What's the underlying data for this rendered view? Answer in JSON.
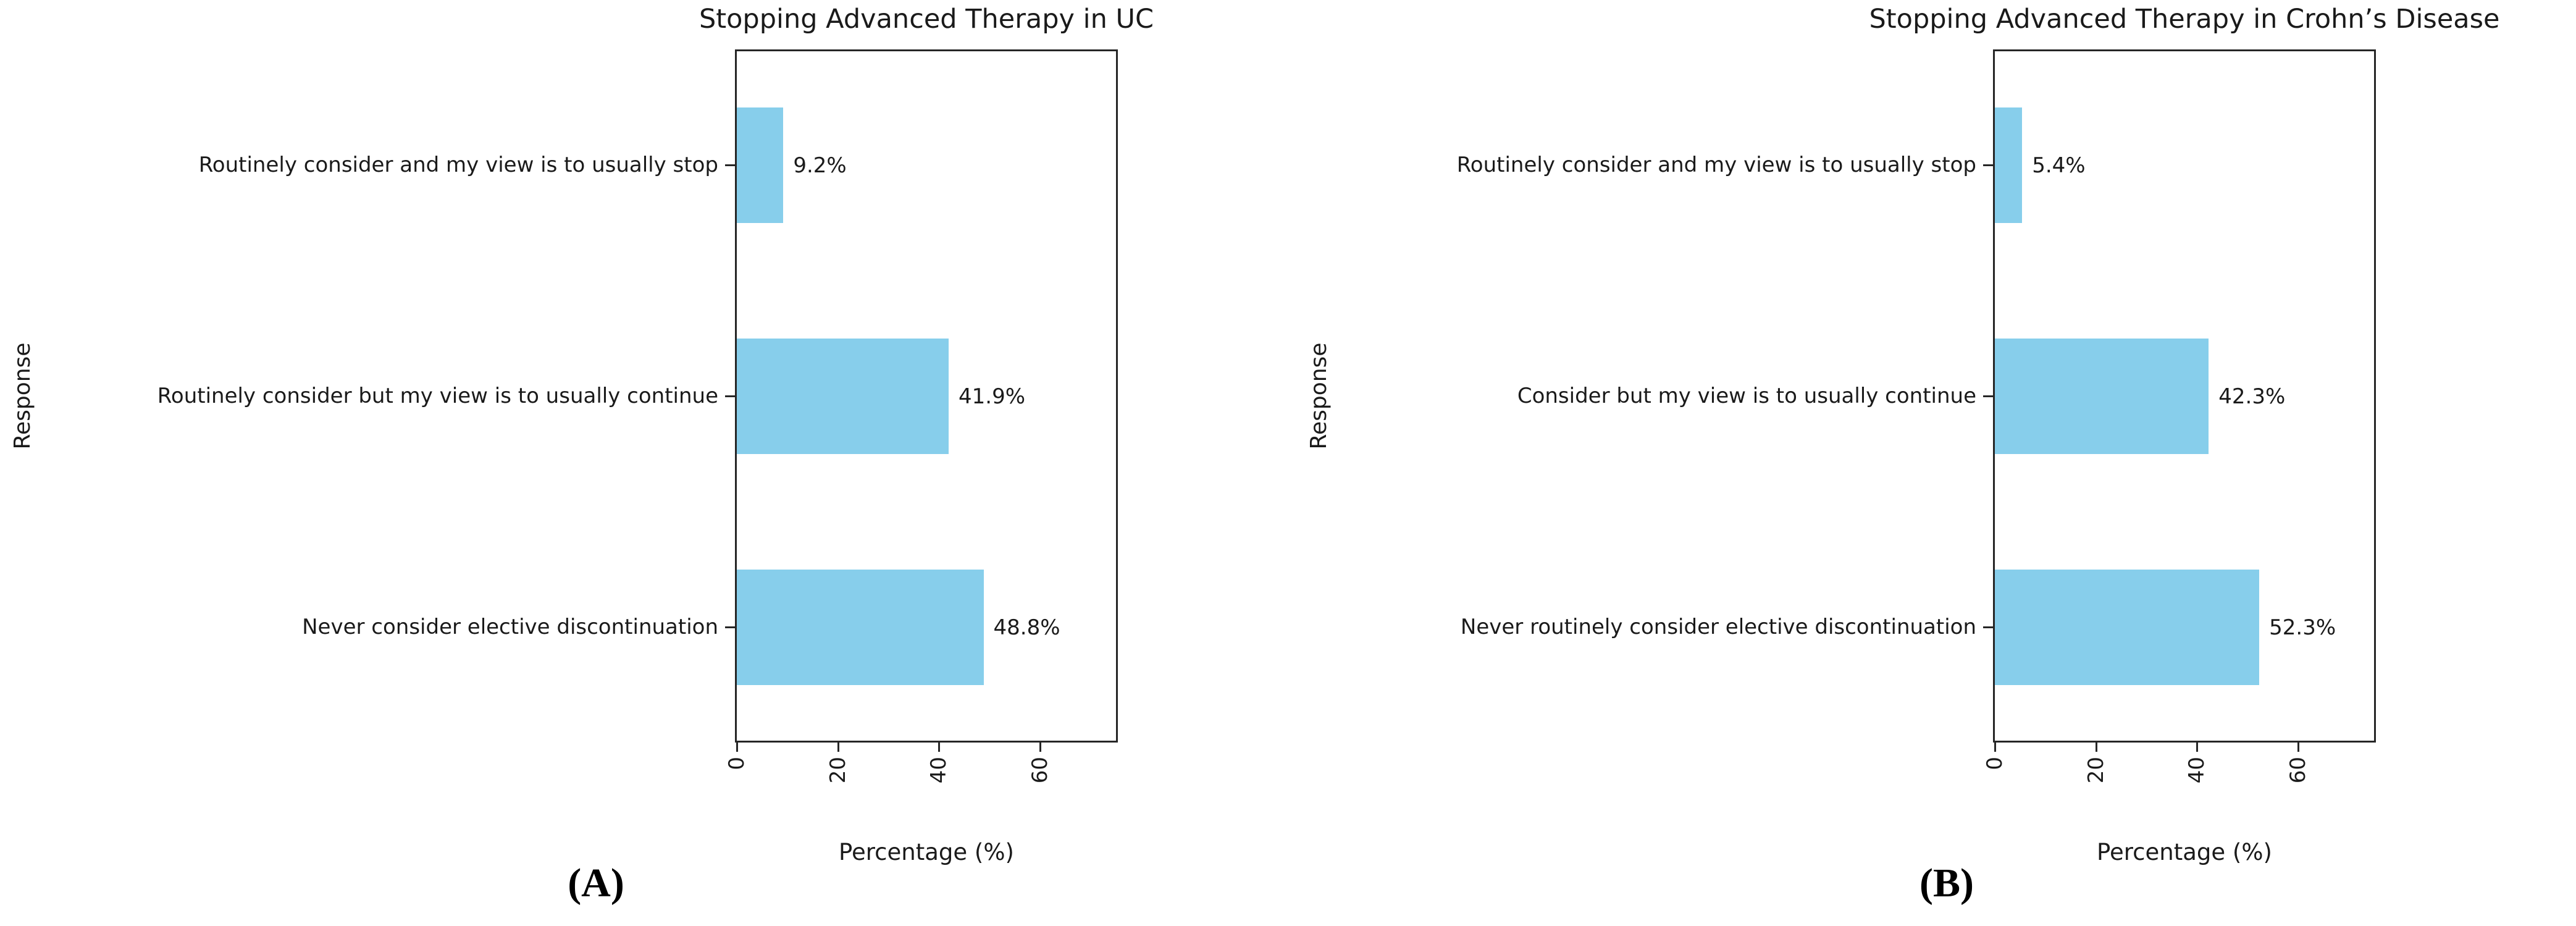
{
  "figure": {
    "background": "#ffffff",
    "bar_color": "#87CEEB",
    "axis_color": "#262626",
    "text_color": "#1a1a1a"
  },
  "chart_data": [
    {
      "type": "bar",
      "orientation": "horizontal",
      "title": "Stopping Advanced Therapy in UC",
      "categories": [
        "Routinely consider and my view is to usually stop",
        "Routinely consider but my view is to usually continue",
        "Never consider elective discontinuation"
      ],
      "values": [
        9.2,
        41.9,
        48.8
      ],
      "value_labels": [
        "9.2%",
        "41.9%",
        "48.8%"
      ],
      "xlabel": "Percentage (%)",
      "ylabel": "Response",
      "xlim": [
        0,
        75
      ],
      "xticks": [
        0,
        20,
        40,
        60
      ],
      "xtick_labels": [
        "0",
        "20",
        "40",
        "60"
      ],
      "grid": false,
      "legend": null,
      "panel_label": "(A)"
    },
    {
      "type": "bar",
      "orientation": "horizontal",
      "title": "Stopping Advanced Therapy in Crohn’s Disease",
      "categories": [
        "Routinely consider and my view is to usually stop",
        "Consider but my view is to usually continue",
        "Never routinely consider elective discontinuation"
      ],
      "values": [
        5.4,
        42.3,
        52.3
      ],
      "value_labels": [
        "5.4%",
        "42.3%",
        "52.3%"
      ],
      "xlabel": "Percentage (%)",
      "ylabel": "Response",
      "xlim": [
        0,
        75
      ],
      "xticks": [
        0,
        20,
        40,
        60
      ],
      "xtick_labels": [
        "0",
        "20",
        "40",
        "60"
      ],
      "grid": false,
      "legend": null,
      "panel_label": "(B)"
    }
  ]
}
